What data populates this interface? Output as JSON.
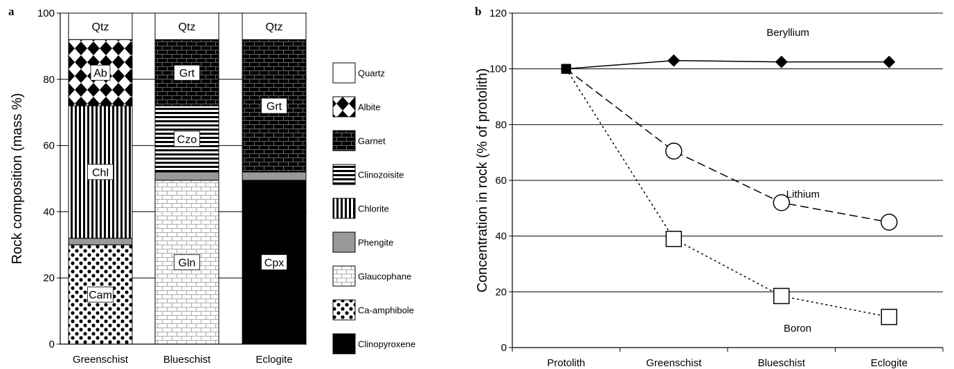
{
  "chart_data": [
    {
      "type": "bar",
      "stacked": true,
      "panel_label": "a",
      "ylabel": "Rock composition (mass %)",
      "ylim": [
        0,
        100
      ],
      "yticks": [
        0,
        20,
        40,
        60,
        80,
        100
      ],
      "categories": [
        "Greenschist",
        "Blueschist",
        "Eclogite"
      ],
      "series": [
        {
          "name": "Ca-amphibole",
          "pattern": "dots",
          "values": [
            30,
            0,
            0
          ],
          "labels": [
            "Cam",
            "",
            ""
          ]
        },
        {
          "name": "Glaucophane",
          "pattern": "light-bricks",
          "values": [
            0,
            49.5,
            0
          ],
          "labels": [
            "",
            "Gln",
            ""
          ]
        },
        {
          "name": "Clinopyroxene",
          "pattern": "solid-black",
          "values": [
            0,
            0,
            49.5
          ],
          "labels": [
            "",
            "",
            "Cpx"
          ]
        },
        {
          "name": "Phengite",
          "pattern": "solid-gray",
          "values": [
            2,
            2.5,
            2.5
          ],
          "labels": [
            "",
            "",
            ""
          ]
        },
        {
          "name": "Chlorite",
          "pattern": "vertical-stripes",
          "values": [
            40,
            0,
            0
          ],
          "labels": [
            "Chl",
            "",
            ""
          ]
        },
        {
          "name": "Clinozoisite",
          "pattern": "horizontal-stripes",
          "values": [
            0,
            20,
            0
          ],
          "labels": [
            "",
            "Czo",
            ""
          ]
        },
        {
          "name": "Garnet",
          "pattern": "dark-bricks",
          "values": [
            0,
            20,
            40
          ],
          "labels": [
            "",
            "Grt",
            "Grt"
          ]
        },
        {
          "name": "Albite",
          "pattern": "diamonds",
          "values": [
            20,
            0,
            0
          ],
          "labels": [
            "Ab",
            "",
            ""
          ]
        },
        {
          "name": "Quartz",
          "pattern": "white",
          "values": [
            8,
            8,
            8
          ],
          "labels": [
            "Qtz",
            "Qtz",
            "Qtz"
          ]
        }
      ],
      "legend": {
        "placement": "right",
        "items": [
          {
            "name": "Quartz",
            "pattern": "white"
          },
          {
            "name": "Albite",
            "pattern": "diamonds"
          },
          {
            "name": "Garnet",
            "pattern": "dark-bricks"
          },
          {
            "name": "Clinozoisite",
            "pattern": "horizontal-stripes"
          },
          {
            "name": "Chlorite",
            "pattern": "vertical-stripes"
          },
          {
            "name": "Phengite",
            "pattern": "solid-gray"
          },
          {
            "name": "Glaucophane",
            "pattern": "light-bricks"
          },
          {
            "name": "Ca-amphibole",
            "pattern": "dots"
          },
          {
            "name": "Clinopyroxene",
            "pattern": "solid-black"
          }
        ]
      },
      "grid": true,
      "colors": {
        "phengite": "#999999",
        "black": "#000000"
      }
    },
    {
      "type": "line",
      "panel_label": "b",
      "ylabel": "Concentration  in rock (% of protolith)",
      "ylim": [
        0,
        120
      ],
      "yticks": [
        0,
        20,
        40,
        60,
        80,
        100,
        120
      ],
      "categories": [
        "Protolith",
        "Greenschist",
        "Blueschist",
        "Eclogite"
      ],
      "series": [
        {
          "name": "Beryllium",
          "values": [
            100,
            103,
            102.5,
            102.5
          ],
          "marker": "diamond-filled",
          "line": "solid"
        },
        {
          "name": "Lithium",
          "values": [
            100,
            70.5,
            52,
            45
          ],
          "marker": "circle-open",
          "line": "dashed"
        },
        {
          "name": "Boron",
          "values": [
            100,
            39,
            18.5,
            11
          ],
          "marker": "square-open",
          "line": "dotted"
        }
      ],
      "series_labels": {
        "placement": "inline"
      },
      "grid": true
    }
  ]
}
